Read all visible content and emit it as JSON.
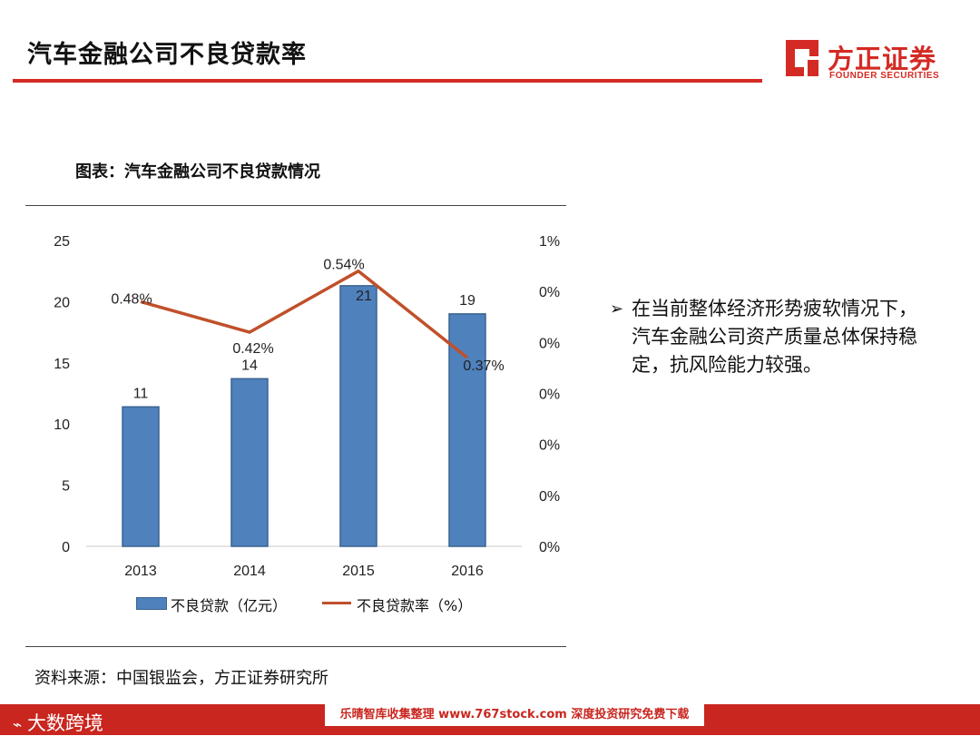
{
  "header": {
    "title": "汽车金融公司不良贷款率",
    "logo_cn": "方正证券",
    "logo_en": "FOUNDER SECURITIES"
  },
  "chart_heading": "图表：汽车金融公司不良贷款情况",
  "chart_data": {
    "type": "bar",
    "categories": [
      "2013",
      "2014",
      "2015",
      "2016"
    ],
    "series": [
      {
        "name": "不良贷款（亿元）",
        "kind": "bar",
        "axis": "left",
        "values": [
          11.4,
          13.7,
          21.3,
          19.0
        ],
        "labels": [
          "11",
          "14",
          "21",
          "19"
        ],
        "color": "#4f81bd"
      },
      {
        "name": "不良贷款率（%）",
        "kind": "line",
        "axis": "right",
        "values": [
          0.48,
          0.42,
          0.54,
          0.37
        ],
        "labels": [
          "0.48%",
          "0.42%",
          "0.54%",
          "0.37%"
        ],
        "color": "#c0502a"
      }
    ],
    "y_left": {
      "min": 0,
      "max": 25,
      "ticks": [
        "0",
        "5",
        "10",
        "15",
        "20",
        "25"
      ]
    },
    "y_right": {
      "min": 0,
      "max": 0.6,
      "ticks": [
        "0%",
        "0%",
        "0%",
        "0%",
        "0%",
        "0%",
        "1%"
      ]
    },
    "legend_position": "bottom",
    "grid": false
  },
  "bullet": {
    "marker": "➢",
    "text": "在当前整体经济形势疲软情况下，汽车金融公司资产质量总体保持稳定，抗风险能力较强。"
  },
  "source": "资料来源：中国银监会，方正证券研究所",
  "footer": {
    "left_brand": "大数跨境",
    "center_text": "乐晴智库收集整理 www.767stock.com 深度投资研究免费下载",
    "color": "#c9261f"
  },
  "colors": {
    "accent": "#d42a24",
    "bar": "#4f81bd",
    "line": "#c0502a"
  }
}
